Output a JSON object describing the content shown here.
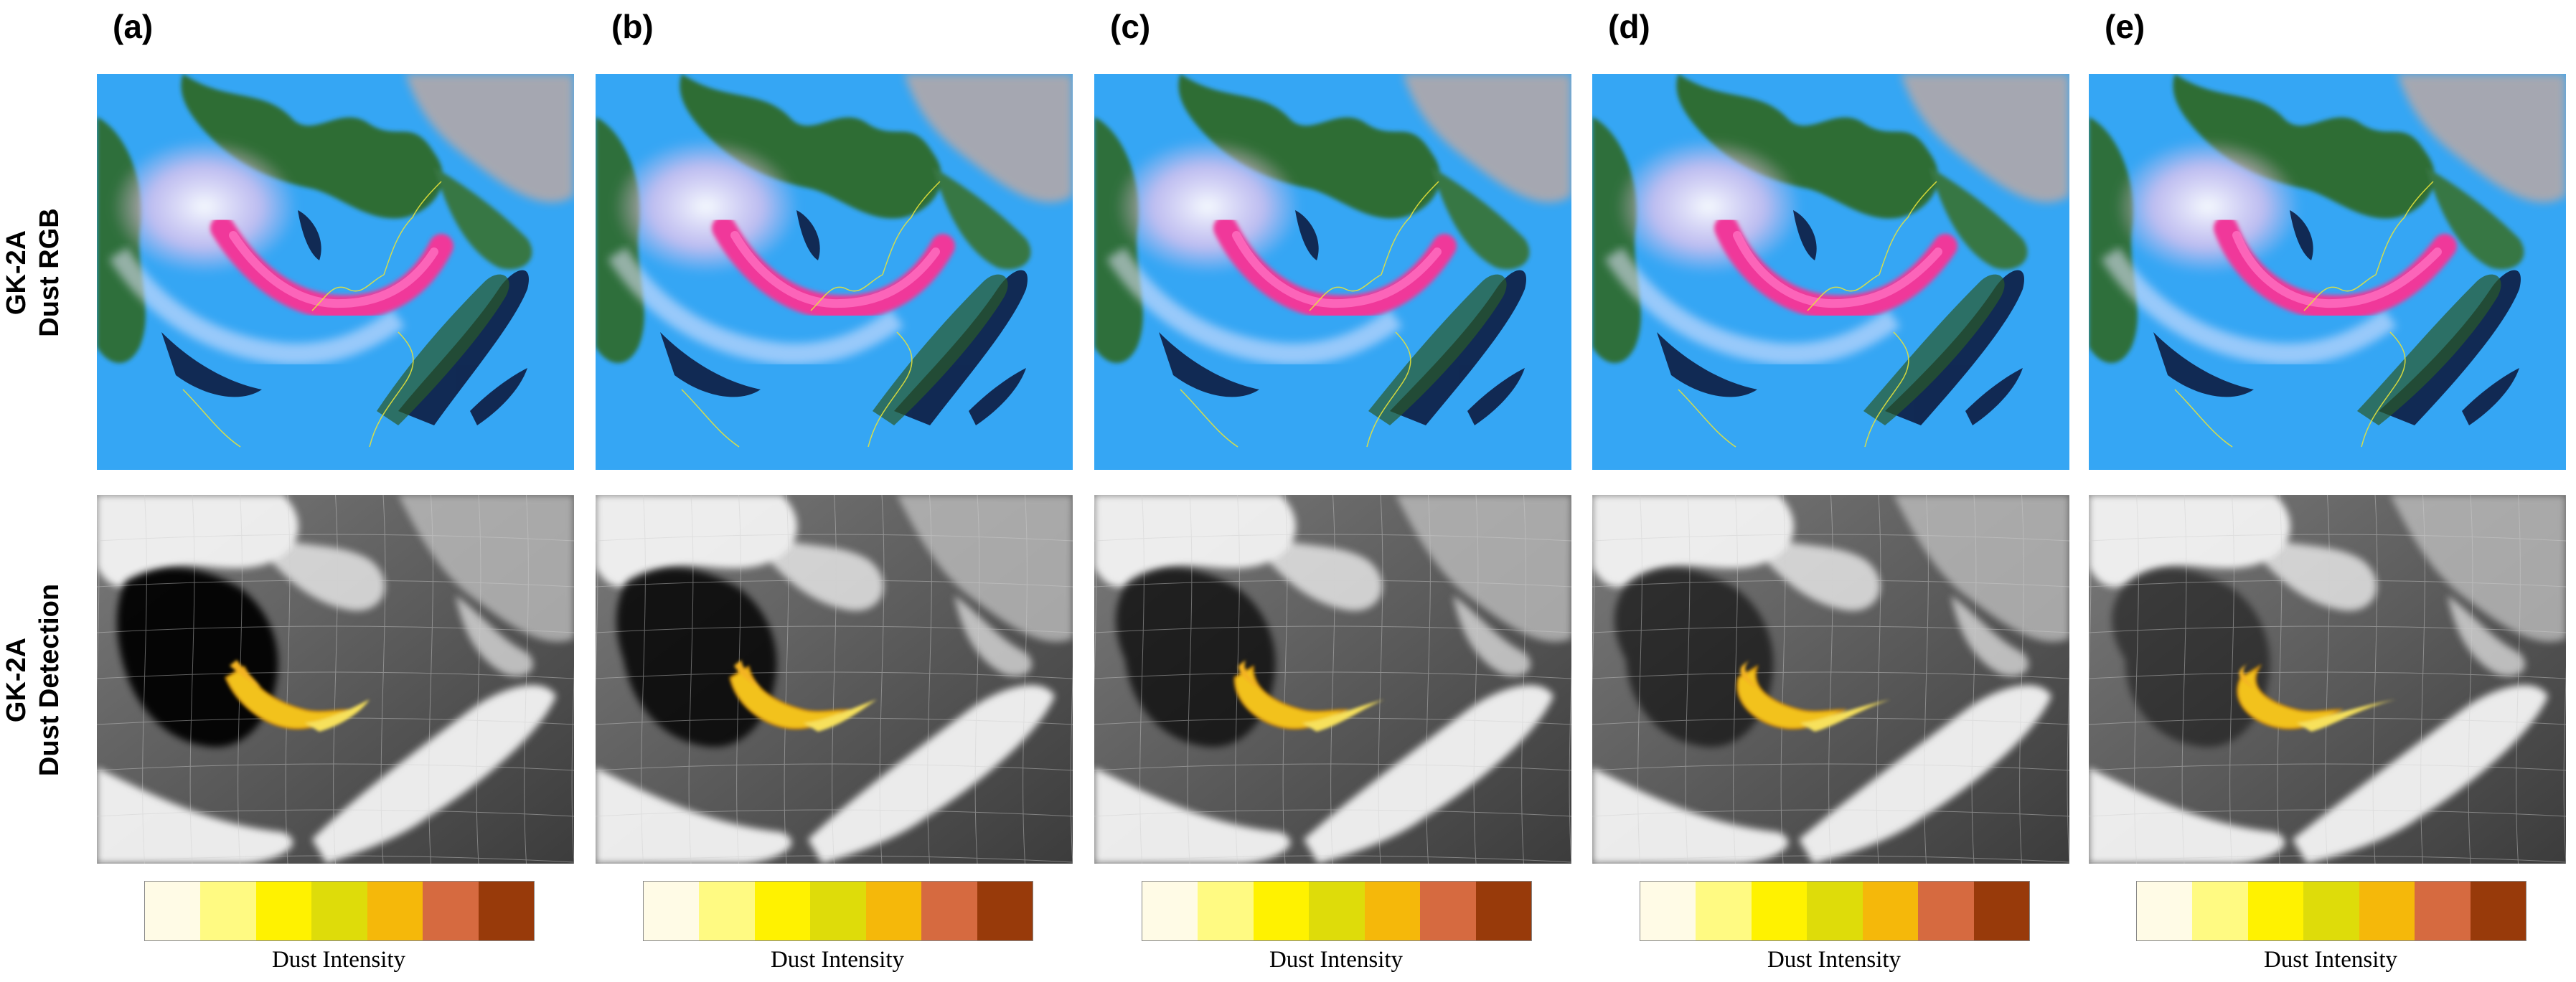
{
  "rows": {
    "rgb": [
      "GK-2A",
      "Dust RGB"
    ],
    "detection": [
      "GK-2A",
      "Dust Detection"
    ]
  },
  "panels": [
    {
      "label": "(a)",
      "variant": 0
    },
    {
      "label": "(b)",
      "variant": 1
    },
    {
      "label": "(c)",
      "variant": 2
    },
    {
      "label": "(d)",
      "variant": 3
    },
    {
      "label": "(e)",
      "variant": 4
    }
  ],
  "legend": {
    "title": "Dust Intensity",
    "colors": [
      "#fffbe6",
      "#fffa82",
      "#fff200",
      "#dedc0a",
      "#f5b80a",
      "#d66a40",
      "#983a0a"
    ]
  },
  "colors": {
    "rgb_background": "#35a6f4",
    "rgb_dust_plume": "#f0389a",
    "rgb_cloud_green": "#2f6a2a",
    "rgb_cloud_dark": "#0a1030",
    "detection_dust": "#f2c21a"
  }
}
